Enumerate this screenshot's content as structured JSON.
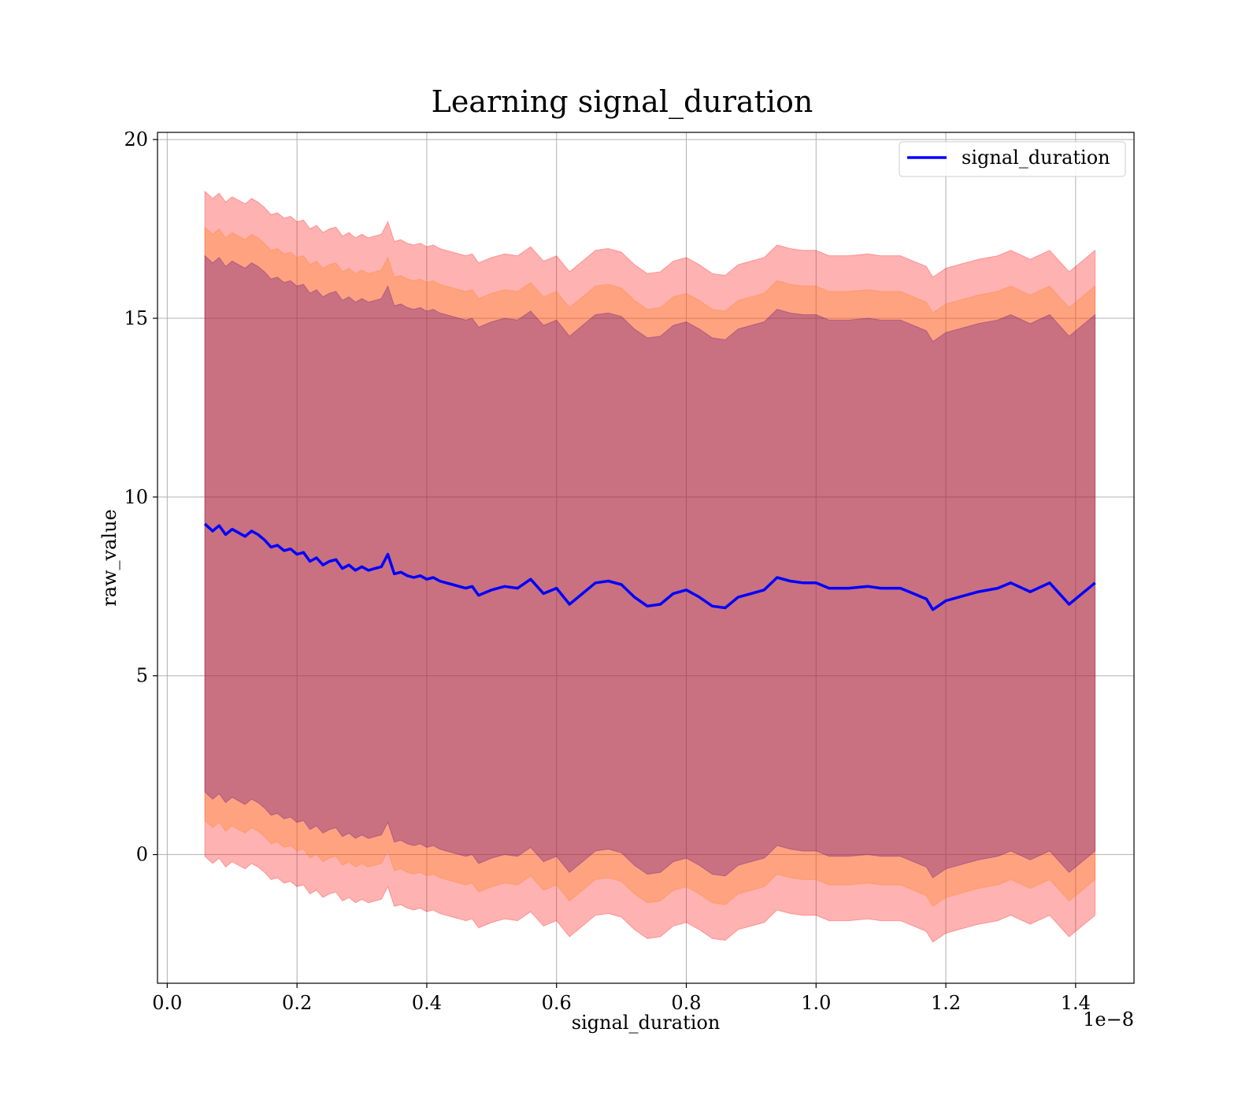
{
  "chart_data": {
    "type": "line",
    "title": "Learning signal_duration",
    "xlabel": "signal_duration",
    "ylabel": "raw_value",
    "x_offset_text": "1e−8",
    "xlim": [
      -0.015,
      1.49
    ],
    "ylim": [
      -3.6,
      20.2
    ],
    "x_ticks": [
      0.0,
      0.2,
      0.4,
      0.6,
      0.8,
      1.0,
      1.2,
      1.4
    ],
    "x_tick_labels": [
      "0.0",
      "0.2",
      "0.4",
      "0.6",
      "0.8",
      "1.0",
      "1.2",
      "1.4"
    ],
    "y_ticks": [
      0,
      5,
      10,
      15,
      20
    ],
    "y_tick_labels": [
      "0",
      "5",
      "10",
      "15",
      "20"
    ],
    "grid": true,
    "legend": {
      "position": "top-right",
      "entries": [
        "signal_duration"
      ]
    },
    "colors": {
      "line": "#0000ff",
      "band_outer": "#ff0000",
      "band_middle": "#ff7f0e",
      "band_inner": "#4b0082"
    },
    "band_half_widths": [
      9.3,
      8.3,
      7.5
    ],
    "series": [
      {
        "name": "signal_duration",
        "x": [
          0.058,
          0.07,
          0.08,
          0.09,
          0.1,
          0.11,
          0.12,
          0.13,
          0.14,
          0.15,
          0.16,
          0.17,
          0.18,
          0.19,
          0.2,
          0.21,
          0.22,
          0.23,
          0.24,
          0.25,
          0.26,
          0.27,
          0.28,
          0.29,
          0.3,
          0.31,
          0.32,
          0.33,
          0.34,
          0.35,
          0.36,
          0.37,
          0.38,
          0.39,
          0.4,
          0.41,
          0.42,
          0.43,
          0.44,
          0.45,
          0.46,
          0.47,
          0.48,
          0.5,
          0.52,
          0.54,
          0.56,
          0.58,
          0.6,
          0.62,
          0.64,
          0.66,
          0.68,
          0.7,
          0.72,
          0.74,
          0.76,
          0.78,
          0.8,
          0.82,
          0.84,
          0.86,
          0.88,
          0.9,
          0.92,
          0.94,
          0.96,
          0.98,
          1.0,
          1.02,
          1.05,
          1.08,
          1.1,
          1.13,
          1.15,
          1.17,
          1.18,
          1.2,
          1.22,
          1.25,
          1.28,
          1.3,
          1.33,
          1.36,
          1.39,
          1.43
        ],
        "values": [
          9.25,
          9.05,
          9.2,
          8.95,
          9.1,
          9.0,
          8.9,
          9.05,
          8.95,
          8.8,
          8.6,
          8.65,
          8.5,
          8.55,
          8.4,
          8.45,
          8.2,
          8.3,
          8.1,
          8.2,
          8.25,
          8.0,
          8.1,
          7.95,
          8.05,
          7.95,
          8.0,
          8.05,
          8.4,
          7.85,
          7.9,
          7.8,
          7.75,
          7.8,
          7.7,
          7.75,
          7.65,
          7.6,
          7.55,
          7.5,
          7.45,
          7.5,
          7.25,
          7.4,
          7.5,
          7.45,
          7.7,
          7.3,
          7.45,
          7.0,
          7.3,
          7.6,
          7.65,
          7.55,
          7.2,
          6.95,
          7.0,
          7.3,
          7.4,
          7.2,
          6.95,
          6.9,
          7.2,
          7.3,
          7.4,
          7.75,
          7.65,
          7.6,
          7.6,
          7.45,
          7.45,
          7.5,
          7.45,
          7.45,
          7.3,
          7.15,
          6.85,
          7.1,
          7.2,
          7.35,
          7.45,
          7.6,
          7.35,
          7.6,
          7.0,
          7.6
        ]
      }
    ]
  }
}
